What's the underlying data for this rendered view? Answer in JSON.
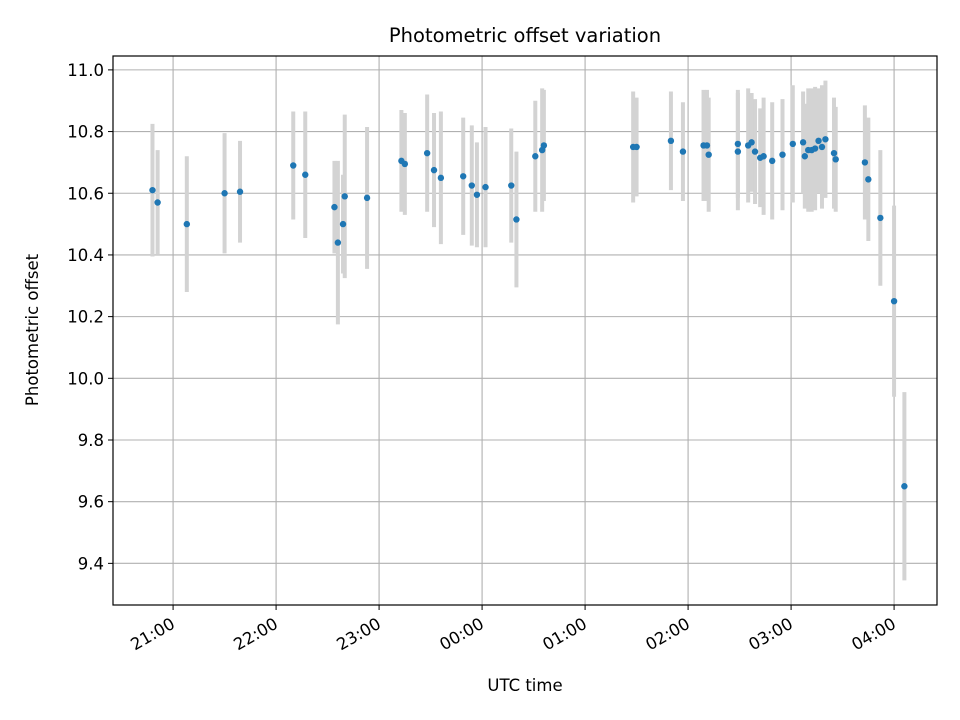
{
  "chart_data": {
    "type": "scatter",
    "title": "Photometric offset variation",
    "xlabel": "UTC time",
    "ylabel": "Photometric offset",
    "x_unit": "UTC time",
    "xlim": [
      "20:25",
      "04:25"
    ],
    "ylim": [
      9.265,
      11.045
    ],
    "x_ticks": [
      "21:00",
      "22:00",
      "23:00",
      "00:00",
      "01:00",
      "02:00",
      "03:00",
      "04:00"
    ],
    "y_ticks": [
      9.4,
      9.6,
      9.8,
      10.0,
      10.2,
      10.4,
      10.6,
      10.8,
      11.0
    ],
    "y_tick_labels": [
      "9.4",
      "9.6",
      "9.8",
      "10.0",
      "10.2",
      "10.4",
      "10.6",
      "10.8",
      "11.0"
    ],
    "grid": true,
    "colors": {
      "marker": "#1f77b4",
      "errorbar": "#d3d3d3",
      "grid": "#b0b0b0"
    },
    "series": [
      {
        "x": [
          "20:48",
          "20:51",
          "21:08",
          "21:30",
          "21:39",
          "22:10",
          "22:17",
          "22:34",
          "22:36",
          "22:39",
          "22:40",
          "22:53",
          "23:13",
          "23:15",
          "23:28",
          "23:32",
          "23:36",
          "23:49",
          "23:54",
          "23:57",
          "00:02",
          "00:17",
          "00:20",
          "00:31",
          "00:35",
          "00:36",
          "01:28",
          "01:30",
          "01:50",
          "01:57",
          "02:09",
          "02:11",
          "02:12",
          "02:29",
          "02:29",
          "02:35",
          "02:37",
          "02:39",
          "02:42",
          "02:44",
          "02:49",
          "02:55",
          "03:01",
          "03:07",
          "03:08",
          "03:10",
          "03:12",
          "03:14",
          "03:16",
          "03:18",
          "03:20",
          "03:25",
          "03:26",
          "03:43",
          "03:45",
          "03:52",
          "04:00",
          "04:06"
        ],
        "y": [
          10.61,
          10.57,
          10.5,
          10.6,
          10.605,
          10.69,
          10.66,
          10.555,
          10.44,
          10.5,
          10.59,
          10.585,
          10.705,
          10.695,
          10.73,
          10.675,
          10.65,
          10.655,
          10.625,
          10.595,
          10.62,
          10.625,
          10.515,
          10.72,
          10.74,
          10.755,
          10.75,
          10.75,
          10.77,
          10.735,
          10.755,
          10.755,
          10.725,
          10.76,
          10.735,
          10.755,
          10.765,
          10.735,
          10.715,
          10.72,
          10.705,
          10.725,
          10.76,
          10.765,
          10.72,
          10.74,
          10.74,
          10.745,
          10.77,
          10.75,
          10.775,
          10.73,
          10.71,
          10.7,
          10.645,
          10.52,
          10.25,
          9.65
        ],
        "y_err": [
          0.215,
          0.17,
          0.22,
          0.195,
          0.165,
          0.175,
          0.205,
          0.15,
          0.265,
          0.16,
          0.265,
          0.23,
          0.165,
          0.165,
          0.19,
          0.185,
          0.215,
          0.19,
          0.195,
          0.17,
          0.195,
          0.185,
          0.22,
          0.18,
          0.2,
          0.18,
          0.18,
          0.16,
          0.16,
          0.16,
          0.18,
          0.18,
          0.185,
          0.175,
          0.19,
          0.185,
          0.16,
          0.17,
          0.16,
          0.19,
          0.19,
          0.18,
          0.19,
          0.165,
          0.17,
          0.2,
          0.2,
          0.2,
          0.17,
          0.2,
          0.19,
          0.18,
          0.17,
          0.185,
          0.2,
          0.22,
          0.31,
          0.305
        ]
      }
    ]
  }
}
